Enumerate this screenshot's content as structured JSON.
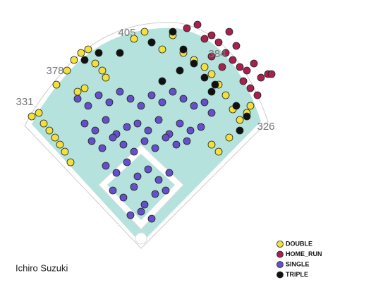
{
  "chart_data": {
    "type": "scatter",
    "title": "Ichiro Suzuki",
    "annotations": [
      "405",
      "378",
      "331",
      "384",
      "326"
    ],
    "series": [
      {
        "name": "SINGLE",
        "color": "#6450c8",
        "x": [
          110,
          125,
          140,
          155,
          170,
          185,
          200,
          215,
          230,
          245,
          260,
          275,
          290,
          300,
          120,
          135,
          150,
          165,
          180,
          195,
          210,
          225,
          240,
          255,
          270,
          285,
          130,
          145,
          160,
          175,
          190,
          205,
          220,
          235,
          250,
          265,
          150,
          165,
          180,
          195,
          210,
          225,
          240,
          160,
          175,
          190,
          205,
          220,
          235,
          185,
          200,
          215
        ],
        "y": [
          140,
          150,
          135,
          145,
          130,
          140,
          150,
          135,
          145,
          130,
          140,
          150,
          145,
          160,
          175,
          185,
          170,
          190,
          180,
          175,
          185,
          170,
          190,
          175,
          185,
          180,
          200,
          210,
          195,
          205,
          215,
          200,
          210,
          195,
          205,
          200,
          235,
          245,
          230,
          250,
          240,
          255,
          245,
          270,
          280,
          265,
          290,
          275,
          270,
          305,
          300,
          310
        ]
      },
      {
        "name": "DOUBLE",
        "color": "#f2e03c",
        "x": [
          45,
          55,
          62,
          70,
          78,
          85,
          92,
          100,
          80,
          95,
          105,
          115,
          125,
          135,
          145,
          150,
          110,
          120,
          190,
          205,
          215,
          230,
          245,
          260,
          275,
          290,
          300,
          310,
          320,
          330,
          340,
          350,
          355,
          300,
          310,
          325
        ],
        "y": [
          165,
          160,
          175,
          185,
          195,
          205,
          215,
          230,
          120,
          100,
          85,
          75,
          70,
          90,
          100,
          110,
          130,
          125,
          55,
          45,
          60,
          70,
          50,
          75,
          85,
          95,
          105,
          120,
          135,
          155,
          170,
          160,
          150,
          205,
          215,
          195
        ]
      },
      {
        "name": "HOME_RUN",
        "color": "#a8204e",
        "x": [
          265,
          280,
          290,
          300,
          310,
          320,
          330,
          340,
          350,
          360,
          370,
          380,
          325,
          335,
          345,
          355,
          365,
          315,
          300,
          385
        ],
        "y": [
          40,
          35,
          55,
          50,
          60,
          75,
          85,
          95,
          100,
          90,
          110,
          105,
          45,
          65,
          115,
          125,
          135,
          95,
          80,
          105
        ]
      },
      {
        "name": "TRIPLE",
        "color": "#111111",
        "x": [
          215,
          245,
          260,
          275,
          290,
          300,
          170,
          140,
          120,
          305,
          335,
          350,
          340,
          230,
          255
        ],
        "y": [
          60,
          45,
          70,
          90,
          110,
          130,
          75,
          75,
          85,
          120,
          150,
          165,
          185,
          115,
          100
        ]
      }
    ],
    "legend_order": [
      "DOUBLE",
      "HOME_RUN",
      "SINGLE",
      "TRIPLE"
    ]
  }
}
